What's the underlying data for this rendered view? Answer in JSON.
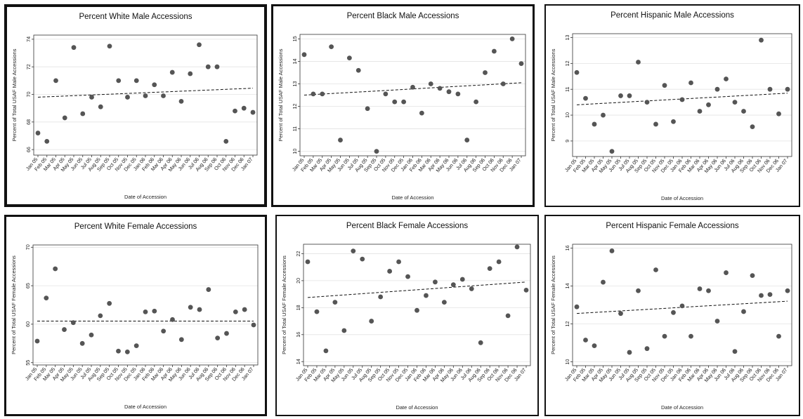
{
  "chart_data": [
    {
      "type": "scatter",
      "title": "Percent White Male Accessions",
      "xlabel": "Date of Accession",
      "ylabel": "Percent of Total USAF Male Accessions",
      "categories": [
        "Jan 05",
        "Feb 05",
        "Mar 05",
        "Apr 05",
        "May 05",
        "Jun 05",
        "Jul 05",
        "Aug 05",
        "Sep 05",
        "Oct 05",
        "Nov 05",
        "Dec 05",
        "Jan 06",
        "Feb 06",
        "Mar 06",
        "Apr 06",
        "May 06",
        "Jun 06",
        "Jul 06",
        "Aug 06",
        "Sep 06",
        "Oct 06",
        "Nov 06",
        "Dec 06",
        "Jan 07"
      ],
      "ylim": [
        65.6,
        74.3
      ],
      "yticks": [
        66,
        68,
        70,
        72,
        74
      ],
      "points": [
        [
          0,
          67.2
        ],
        [
          1,
          66.6
        ],
        [
          2,
          71.0
        ],
        [
          3,
          68.3
        ],
        [
          4,
          73.4
        ],
        [
          5,
          68.6
        ],
        [
          6,
          69.8
        ],
        [
          7,
          69.1
        ],
        [
          8,
          73.5
        ],
        [
          9,
          71.0
        ],
        [
          10,
          69.8
        ],
        [
          11,
          71.0
        ],
        [
          12,
          69.9
        ],
        [
          13,
          70.7
        ],
        [
          14,
          69.9
        ],
        [
          15,
          71.6
        ],
        [
          16,
          69.5
        ],
        [
          17,
          71.5
        ],
        [
          18,
          73.6
        ],
        [
          19,
          72.0
        ],
        [
          20,
          72.0
        ],
        [
          21,
          66.6
        ],
        [
          22,
          68.8
        ],
        [
          23,
          69.0
        ],
        [
          24,
          68.7
        ]
      ],
      "trend": [
        69.8,
        70.45
      ],
      "grid": true,
      "accent_color": "#555555"
    },
    {
      "type": "scatter",
      "title": "Percent Black Male Accessions",
      "xlabel": "Date of Accession",
      "ylabel": "Percent of Total USAF Male Accessions",
      "categories": [
        "Jan 05",
        "Feb 05",
        "Mar 05",
        "Apr 05",
        "May 05",
        "Jun 05",
        "Jul 05",
        "Aug 05",
        "Sep 05",
        "Oct 05",
        "Nov 05",
        "Dec 05",
        "Jan 06",
        "Feb 06",
        "Mar 06",
        "Apr 06",
        "May 06",
        "Jun 06",
        "Jul 06",
        "Aug 06",
        "Sep 06",
        "Oct 06",
        "Nov 06",
        "Dec 06",
        "Jan 07"
      ],
      "ylim": [
        9.8,
        15.2
      ],
      "yticks": [
        10,
        11,
        12,
        13,
        14,
        15
      ],
      "points": [
        [
          0,
          14.3
        ],
        [
          1,
          12.55
        ],
        [
          2,
          12.55
        ],
        [
          3,
          14.65
        ],
        [
          4,
          10.5
        ],
        [
          5,
          14.15
        ],
        [
          6,
          13.6
        ],
        [
          7,
          11.9
        ],
        [
          8,
          10.0
        ],
        [
          9,
          12.55
        ],
        [
          10,
          12.2
        ],
        [
          11,
          12.2
        ],
        [
          12,
          12.85
        ],
        [
          13,
          11.7
        ],
        [
          14,
          13.0
        ],
        [
          15,
          12.8
        ],
        [
          16,
          12.65
        ],
        [
          17,
          12.55
        ],
        [
          18,
          10.5
        ],
        [
          19,
          12.2
        ],
        [
          20,
          13.5
        ],
        [
          21,
          14.45
        ],
        [
          22,
          13.0
        ],
        [
          23,
          15.0
        ],
        [
          24,
          13.9
        ]
      ],
      "trend": [
        12.5,
        13.05
      ],
      "grid": true,
      "accent_color": "#555555"
    },
    {
      "type": "scatter",
      "title": "Percent Hispanic Male Accessions",
      "xlabel": "Date of Accession",
      "ylabel": "Percent of Total USAF Male Accessions",
      "categories": [
        "Jan 05",
        "Feb 05",
        "Mar 05",
        "Apr 05",
        "May 05",
        "Jun 05",
        "Jul 05",
        "Aug 05",
        "Sep 05",
        "Oct 05",
        "Nov 05",
        "Dec 05",
        "Jan 06",
        "Feb 06",
        "Mar 06",
        "Apr 06",
        "May 06",
        "Jun 06",
        "Jul 06",
        "Aug 06",
        "Sep 06",
        "Oct 06",
        "Nov 06",
        "Dec 06",
        "Jan 07"
      ],
      "ylim": [
        8.4,
        13.15
      ],
      "yticks": [
        9,
        10,
        11,
        12,
        13
      ],
      "points": [
        [
          0,
          11.65
        ],
        [
          1,
          10.65
        ],
        [
          2,
          9.65
        ],
        [
          3,
          10.0
        ],
        [
          4,
          8.6
        ],
        [
          5,
          10.75
        ],
        [
          6,
          10.75
        ],
        [
          7,
          12.05
        ],
        [
          8,
          10.5
        ],
        [
          9,
          9.65
        ],
        [
          10,
          11.15
        ],
        [
          11,
          9.75
        ],
        [
          12,
          10.6
        ],
        [
          13,
          11.25
        ],
        [
          14,
          10.15
        ],
        [
          15,
          10.4
        ],
        [
          16,
          11.0
        ],
        [
          17,
          11.4
        ],
        [
          18,
          10.5
        ],
        [
          19,
          10.15
        ],
        [
          20,
          9.55
        ],
        [
          21,
          12.9
        ],
        [
          22,
          11.0
        ],
        [
          23,
          10.05
        ],
        [
          24,
          11.0
        ]
      ],
      "trend": [
        10.4,
        10.85
      ],
      "grid": true,
      "accent_color": "#555555"
    },
    {
      "type": "scatter",
      "title": "Percent White Female Accessions",
      "xlabel": "Date of Accession",
      "ylabel": "Percent of Total USAF Female Accessions",
      "categories": [
        "Jan 05",
        "Feb 05",
        "Mar 05",
        "Apr 05",
        "May 05",
        "Jun 05",
        "Jul 05",
        "Aug 05",
        "Sep 05",
        "Oct 05",
        "Nov 05",
        "Dec 05",
        "Jan 06",
        "Feb 06",
        "Mar 06",
        "Apr 06",
        "May 06",
        "Jun 06",
        "Jul 06",
        "Aug 06",
        "Sep 06",
        "Oct 06",
        "Nov 06",
        "Dec 06",
        "Jan 07"
      ],
      "ylim": [
        54.7,
        70.3
      ],
      "yticks": [
        55,
        60,
        65,
        70
      ],
      "points": [
        [
          0,
          57.8
        ],
        [
          1,
          63.4
        ],
        [
          2,
          67.2
        ],
        [
          3,
          59.3
        ],
        [
          4,
          60.2
        ],
        [
          5,
          57.5
        ],
        [
          6,
          58.6
        ],
        [
          7,
          61.1
        ],
        [
          8,
          62.7
        ],
        [
          9,
          56.5
        ],
        [
          10,
          56.4
        ],
        [
          11,
          57.2
        ],
        [
          12,
          61.6
        ],
        [
          13,
          61.7
        ],
        [
          14,
          59.1
        ],
        [
          15,
          60.6
        ],
        [
          16,
          58.0
        ],
        [
          17,
          62.2
        ],
        [
          18,
          61.9
        ],
        [
          19,
          64.5
        ],
        [
          20,
          58.2
        ],
        [
          21,
          58.8
        ],
        [
          22,
          61.6
        ],
        [
          23,
          61.9
        ],
        [
          24,
          59.9
        ]
      ],
      "trend": [
        60.4,
        60.4
      ],
      "grid": true,
      "accent_color": "#555555"
    },
    {
      "type": "scatter",
      "title": "Percent Black Female Accessions",
      "xlabel": "Date of Accession",
      "ylabel": "Percent of Total USAF Female Accessions",
      "categories": [
        "Jan 05",
        "Feb 05",
        "Mar 05",
        "Apr 05",
        "May 05",
        "Jun 05",
        "Jul 05",
        "Aug 05",
        "Sep 05",
        "Oct 05",
        "Nov 05",
        "Dec 05",
        "Jan 06",
        "Feb 06",
        "Mar 06",
        "Apr 06",
        "May 06",
        "Jun 06",
        "Jul 06",
        "Aug 06",
        "Sep 06",
        "Oct 06",
        "Nov 06",
        "Dec 06",
        "Jan 07"
      ],
      "ylim": [
        13.7,
        22.7
      ],
      "yticks": [
        14,
        16,
        18,
        20,
        22
      ],
      "points": [
        [
          0,
          21.4
        ],
        [
          1,
          17.7
        ],
        [
          2,
          14.8
        ],
        [
          3,
          18.4
        ],
        [
          4,
          16.3
        ],
        [
          5,
          22.2
        ],
        [
          6,
          21.6
        ],
        [
          7,
          17.0
        ],
        [
          8,
          18.8
        ],
        [
          9,
          20.7
        ],
        [
          10,
          21.4
        ],
        [
          11,
          20.3
        ],
        [
          12,
          17.8
        ],
        [
          13,
          18.9
        ],
        [
          14,
          19.9
        ],
        [
          15,
          18.4
        ],
        [
          16,
          19.7
        ],
        [
          17,
          20.1
        ],
        [
          18,
          19.4
        ],
        [
          19,
          15.4
        ],
        [
          20,
          20.9
        ],
        [
          21,
          21.4
        ],
        [
          22,
          17.4
        ],
        [
          23,
          22.5
        ],
        [
          24,
          19.3
        ]
      ],
      "trend": [
        18.75,
        19.9
      ],
      "grid": true,
      "accent_color": "#555555"
    },
    {
      "type": "scatter",
      "title": "Percent Hispanic Female Accessions",
      "xlabel": "Date of Accession",
      "ylabel": "Percent of Total USAF Female Accessions",
      "categories": [
        "Jan 05",
        "Feb 05",
        "Mar 05",
        "Apr 05",
        "May 05",
        "Jun 05",
        "Jul 05",
        "Aug 05",
        "Sep 05",
        "Oct 05",
        "Nov 05",
        "Dec 05",
        "Jan 06",
        "Feb 06",
        "Mar 06",
        "Apr 06",
        "May 06",
        "Jun 06",
        "Jul 06",
        "Aug 06",
        "Sep 06",
        "Oct 06",
        "Nov 06",
        "Dec 06",
        "Jan 07"
      ],
      "ylim": [
        9.8,
        16.2
      ],
      "yticks": [
        10,
        12,
        14,
        16
      ],
      "points": [
        [
          0,
          12.9
        ],
        [
          1,
          11.15
        ],
        [
          2,
          10.85
        ],
        [
          3,
          14.2
        ],
        [
          4,
          15.85
        ],
        [
          5,
          12.55
        ],
        [
          6,
          10.5
        ],
        [
          7,
          13.75
        ],
        [
          8,
          10.7
        ],
        [
          9,
          14.85
        ],
        [
          10,
          11.35
        ],
        [
          11,
          12.6
        ],
        [
          12,
          12.95
        ],
        [
          13,
          11.35
        ],
        [
          14,
          13.85
        ],
        [
          15,
          13.75
        ],
        [
          16,
          12.15
        ],
        [
          17,
          14.7
        ],
        [
          18,
          10.55
        ],
        [
          19,
          12.65
        ],
        [
          20,
          14.55
        ],
        [
          21,
          13.5
        ],
        [
          22,
          13.55
        ],
        [
          23,
          11.35
        ],
        [
          24,
          13.75
        ]
      ],
      "trend": [
        12.55,
        13.2
      ],
      "grid": true,
      "accent_color": "#555555"
    }
  ]
}
